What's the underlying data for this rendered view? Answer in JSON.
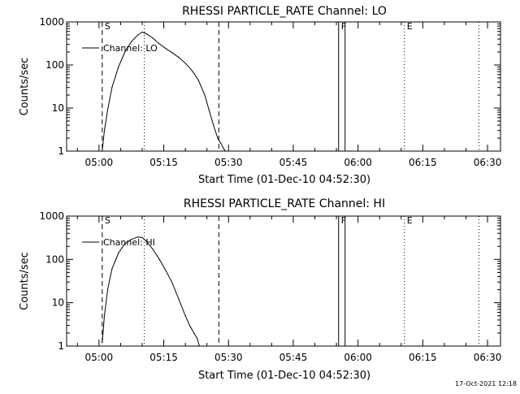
{
  "timestamp": "17-Oct-2021 12:18",
  "colors": {
    "background": "#ffffff",
    "foreground": "#000000"
  },
  "chart_data": [
    {
      "type": "line",
      "title": "RHESSI PARTICLE_RATE Channel: LO",
      "xlabel": "Start Time (01-Dec-10 04:52:30)",
      "ylabel": "Counts/sec",
      "y_scale": "log",
      "ylim": [
        1,
        1000
      ],
      "xlim": [
        "04:52:30",
        "06:33:00"
      ],
      "x_ticks": [
        "05:00",
        "05:15",
        "05:30",
        "05:45",
        "06:00",
        "06:15",
        "06:30"
      ],
      "y_ticks": [
        "1",
        "10",
        "100",
        "1000"
      ],
      "grid": false,
      "legend": {
        "position": "top-left",
        "entries": [
          "Channel: LO"
        ]
      },
      "series": [
        {
          "name": "Channel: LO",
          "x": [
            "05:00:45",
            "05:01:15",
            "05:02:00",
            "05:03:00",
            "05:04:30",
            "05:06:00",
            "05:07:30",
            "05:09:00",
            "05:10:00",
            "05:11:00",
            "05:12:30",
            "05:14:00",
            "05:15:30",
            "05:17:00",
            "05:18:30",
            "05:20:00",
            "05:21:30",
            "05:23:00",
            "05:24:30",
            "05:25:30",
            "05:26:30",
            "05:27:30",
            "05:28:15",
            "05:28:45",
            "05:29:15"
          ],
          "y": [
            1,
            3,
            9,
            30,
            90,
            200,
            350,
            500,
            580,
            530,
            420,
            310,
            240,
            190,
            150,
            110,
            75,
            45,
            20,
            9,
            4,
            2,
            1.5,
            1.2,
            1
          ]
        }
      ],
      "annotations": [
        {
          "label": "S",
          "time": "05:00:45",
          "line": "dashed"
        },
        {
          "label": "",
          "time": "05:10:30",
          "line": "dotted"
        },
        {
          "label": "",
          "time": "05:27:45",
          "line": "dashed"
        },
        {
          "label": "F",
          "time": "05:55:30",
          "line": "solid"
        },
        {
          "label": "",
          "time": "05:57:00",
          "line": "solid"
        },
        {
          "label": "E",
          "time": "06:10:45",
          "line": "dotted"
        },
        {
          "label": "",
          "time": "06:28:00",
          "line": "dotted"
        }
      ]
    },
    {
      "type": "line",
      "title": "RHESSI PARTICLE_RATE Channel: HI",
      "xlabel": "Start Time (01-Dec-10 04:52:30)",
      "ylabel": "Counts/sec",
      "y_scale": "log",
      "ylim": [
        1,
        1000
      ],
      "xlim": [
        "04:52:30",
        "06:33:00"
      ],
      "x_ticks": [
        "05:00",
        "05:15",
        "05:30",
        "05:45",
        "06:00",
        "06:15",
        "06:30"
      ],
      "y_ticks": [
        "1",
        "10",
        "100",
        "1000"
      ],
      "grid": false,
      "legend": {
        "position": "top-left",
        "entries": [
          "Channel: HI"
        ]
      },
      "series": [
        {
          "name": "Channel: HI",
          "x": [
            "05:00:45",
            "05:01:15",
            "05:02:00",
            "05:03:00",
            "05:04:30",
            "05:06:00",
            "05:07:30",
            "05:09:00",
            "05:10:00",
            "05:11:00",
            "05:12:30",
            "05:14:00",
            "05:15:30",
            "05:17:00",
            "05:18:30",
            "05:20:00",
            "05:21:00",
            "05:22:00",
            "05:22:45",
            "05:23:15"
          ],
          "y": [
            1.2,
            5,
            20,
            60,
            140,
            230,
            290,
            330,
            320,
            260,
            170,
            100,
            55,
            28,
            12,
            5,
            3,
            2,
            1.5,
            1
          ]
        }
      ],
      "annotations": [
        {
          "label": "S",
          "time": "05:00:45",
          "line": "dashed"
        },
        {
          "label": "",
          "time": "05:10:30",
          "line": "dotted"
        },
        {
          "label": "",
          "time": "05:27:45",
          "line": "dashed"
        },
        {
          "label": "F",
          "time": "05:55:30",
          "line": "solid"
        },
        {
          "label": "",
          "time": "05:57:00",
          "line": "solid"
        },
        {
          "label": "E",
          "time": "06:10:45",
          "line": "dotted"
        },
        {
          "label": "",
          "time": "06:28:00",
          "line": "dotted"
        }
      ]
    }
  ]
}
